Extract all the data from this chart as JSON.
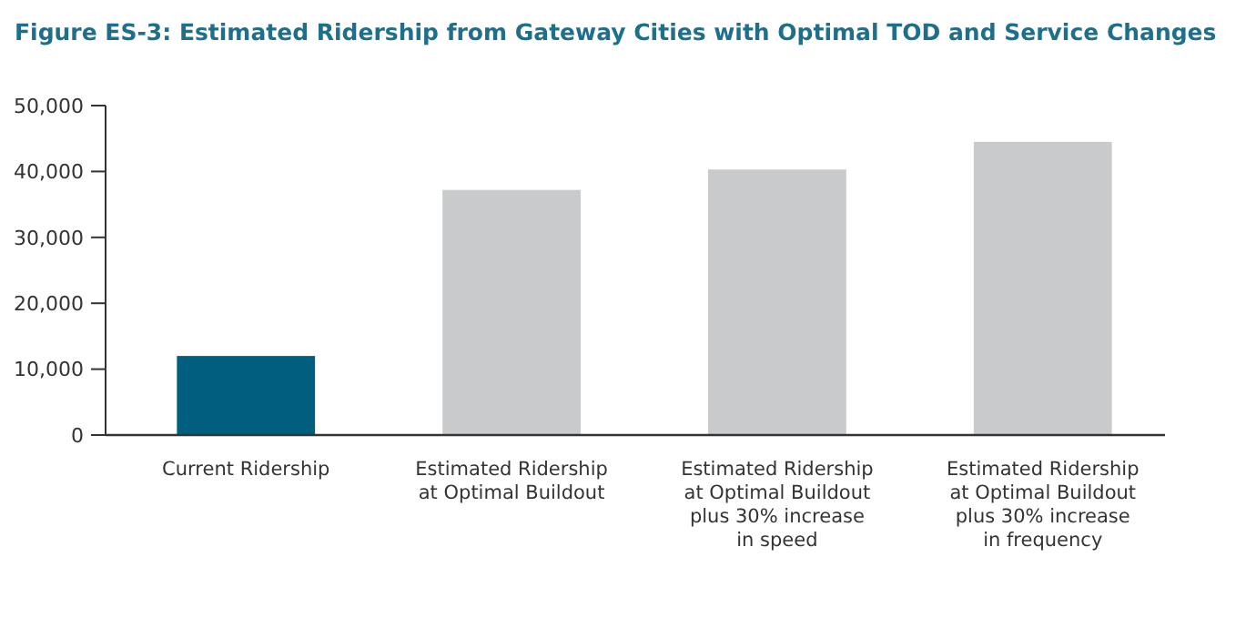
{
  "chart_data": {
    "type": "bar",
    "title": "Figure ES-3: Estimated Ridership from Gateway Cities with Optimal TOD and Service Changes",
    "categories": [
      "Current Ridership",
      "Estimated Ridership\nat Optimal Buildout",
      "Estimated Ridership\nat Optimal Buildout\nplus 30% increase\nin speed",
      "Estimated Ridership\nat Optimal Buildout\nplus 30% increase\nin frequency"
    ],
    "values": [
      12000,
      37200,
      40300,
      44500
    ],
    "colors": [
      "#005f7f",
      "#c9cacc",
      "#c9cacc",
      "#c9cacc"
    ],
    "ylim": [
      0,
      50000
    ],
    "yticks": [
      {
        "value": 0,
        "label": "0"
      },
      {
        "value": 10000,
        "label": "10,000"
      },
      {
        "value": 20000,
        "label": "20,000"
      },
      {
        "value": 30000,
        "label": "30,000"
      },
      {
        "value": 40000,
        "label": "40,000"
      },
      {
        "value": 50000,
        "label": "50,000"
      }
    ],
    "grid": false
  }
}
